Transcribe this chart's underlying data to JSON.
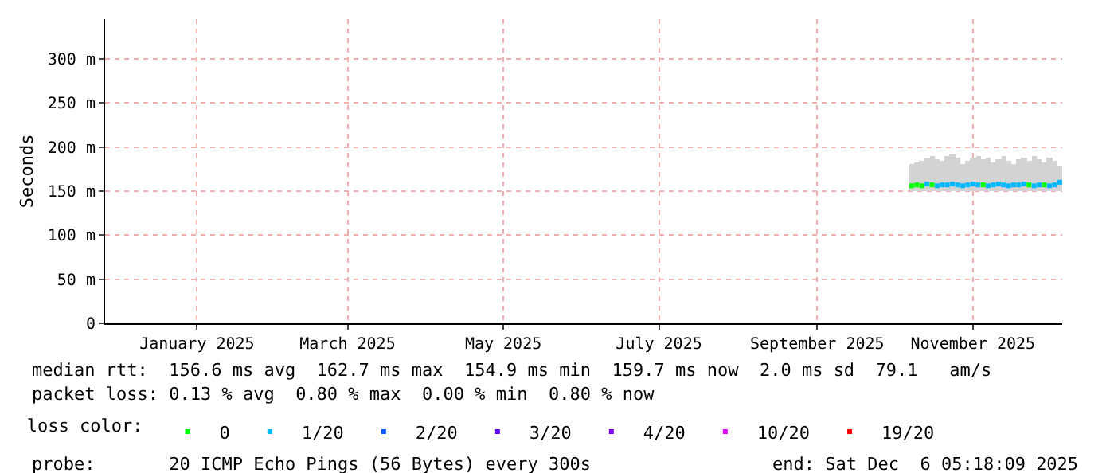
{
  "chart_data": {
    "type": "scatter",
    "ylabel": "Seconds",
    "x": [
      "2025-10-08",
      "2025-10-10",
      "2025-10-12",
      "2025-10-14",
      "2025-10-16",
      "2025-10-18",
      "2025-10-20",
      "2025-10-22",
      "2025-10-24",
      "2025-10-26",
      "2025-10-28",
      "2025-10-30",
      "2025-11-01",
      "2025-11-03",
      "2025-11-05",
      "2025-11-07",
      "2025-11-09",
      "2025-11-11",
      "2025-11-13",
      "2025-11-15",
      "2025-11-17",
      "2025-11-19",
      "2025-11-21",
      "2025-11-23",
      "2025-11-25",
      "2025-11-27",
      "2025-11-29",
      "2025-12-01",
      "2025-12-03",
      "2025-12-05"
    ],
    "series": [
      {
        "type": "bar",
        "color": "#d3d3d3",
        "base": [
          150,
          150,
          150,
          150,
          150,
          150,
          150,
          150,
          150,
          150,
          150,
          150,
          150,
          150,
          150,
          150,
          150,
          150,
          150,
          150,
          150,
          150,
          150,
          150,
          150,
          150,
          150,
          150,
          150,
          150
        ],
        "values": [
          30,
          32,
          35,
          38,
          40,
          36,
          34,
          40,
          42,
          38,
          30,
          35,
          38,
          40,
          36,
          38,
          32,
          36,
          40,
          35,
          30,
          36,
          38,
          34,
          40,
          36,
          32,
          38,
          35,
          28
        ]
      },
      {
        "name": "0",
        "color": "#00ff00",
        "values": [
          156,
          157,
          156,
          null,
          157,
          null,
          null,
          null,
          null,
          null,
          null,
          null,
          null,
          null,
          157,
          null,
          null,
          null,
          null,
          null,
          null,
          null,
          null,
          157,
          null,
          null,
          157,
          null,
          null,
          null
        ]
      },
      {
        "name": "1/20",
        "color": "#00b8ff",
        "values": [
          null,
          null,
          null,
          158,
          null,
          156,
          157,
          157,
          158,
          157,
          156,
          157,
          158,
          157,
          null,
          156,
          157,
          158,
          157,
          156,
          157,
          157,
          158,
          null,
          156,
          157,
          null,
          156,
          157,
          160
        ]
      },
      {
        "name": "2/20",
        "color": "#0059ff",
        "values": [
          null,
          null,
          null,
          null,
          null,
          null,
          null,
          null,
          null,
          null,
          null,
          null,
          null,
          null,
          null,
          null,
          null,
          null,
          null,
          null,
          null,
          null,
          null,
          null,
          null,
          null,
          null,
          null,
          null,
          null
        ]
      },
      {
        "name": "3/20",
        "color": "#5e00ff",
        "values": [
          null,
          null,
          null,
          null,
          null,
          null,
          null,
          null,
          null,
          null,
          null,
          null,
          null,
          null,
          null,
          null,
          null,
          null,
          null,
          null,
          null,
          null,
          null,
          null,
          null,
          null,
          null,
          null,
          null,
          null
        ]
      },
      {
        "name": "4/20",
        "color": "#7e00ff",
        "values": [
          null,
          null,
          null,
          null,
          null,
          null,
          null,
          null,
          null,
          null,
          null,
          null,
          null,
          null,
          null,
          null,
          null,
          null,
          null,
          null,
          null,
          null,
          null,
          null,
          null,
          null,
          null,
          null,
          null,
          null
        ]
      },
      {
        "name": "10/20",
        "color": "#dd00ff",
        "values": [
          null,
          null,
          null,
          null,
          null,
          null,
          null,
          null,
          null,
          null,
          null,
          null,
          null,
          null,
          null,
          null,
          null,
          null,
          null,
          null,
          null,
          null,
          null,
          null,
          null,
          null,
          null,
          null,
          null,
          null
        ]
      },
      {
        "name": "19/20",
        "color": "#ff0000",
        "values": [
          null,
          null,
          null,
          null,
          null,
          null,
          null,
          null,
          null,
          null,
          null,
          null,
          null,
          null,
          null,
          null,
          null,
          null,
          null,
          null,
          null,
          null,
          null,
          null,
          null,
          null,
          null,
          null,
          null,
          null
        ]
      }
    ],
    "marker": "square",
    "legend": "bottom",
    "legend_title": "loss color:",
    "grid": true,
    "xlim": [
      "2024-11-26",
      "2025-12-06"
    ],
    "xticks": [
      {
        "value": "2025-01-01",
        "label": "January 2025"
      },
      {
        "value": "2025-03-01",
        "label": "March 2025"
      },
      {
        "value": "2025-05-01",
        "label": "May 2025"
      },
      {
        "value": "2025-07-01",
        "label": "July 2025"
      },
      {
        "value": "2025-09-01",
        "label": "September 2025"
      },
      {
        "value": "2025-11-01",
        "label": "November 2025"
      }
    ],
    "ylim": [
      0,
      345
    ],
    "yticks": [
      0,
      {
        "value": 50,
        "label": "50 m"
      },
      {
        "value": 100,
        "label": "100 m"
      },
      {
        "value": 150,
        "label": "150 m"
      },
      {
        "value": 200,
        "label": "200 m"
      },
      {
        "value": 250,
        "label": "250 m"
      },
      {
        "value": 300,
        "label": "300 m"
      }
    ],
    "annotations": [
      "median rtt:  156.6 ms avg  162.7 ms max  154.9 ms min  159.7 ms now  2.0 ms sd  79.1   am/s",
      "packet loss: 0.13 % avg  0.80 % max  0.00 % min  0.80 % now",
      "probe:       20 ICMP Echo Pings (56 Bytes) every 300s",
      "end: Sat Dec  6 05:18:09 2025"
    ]
  }
}
